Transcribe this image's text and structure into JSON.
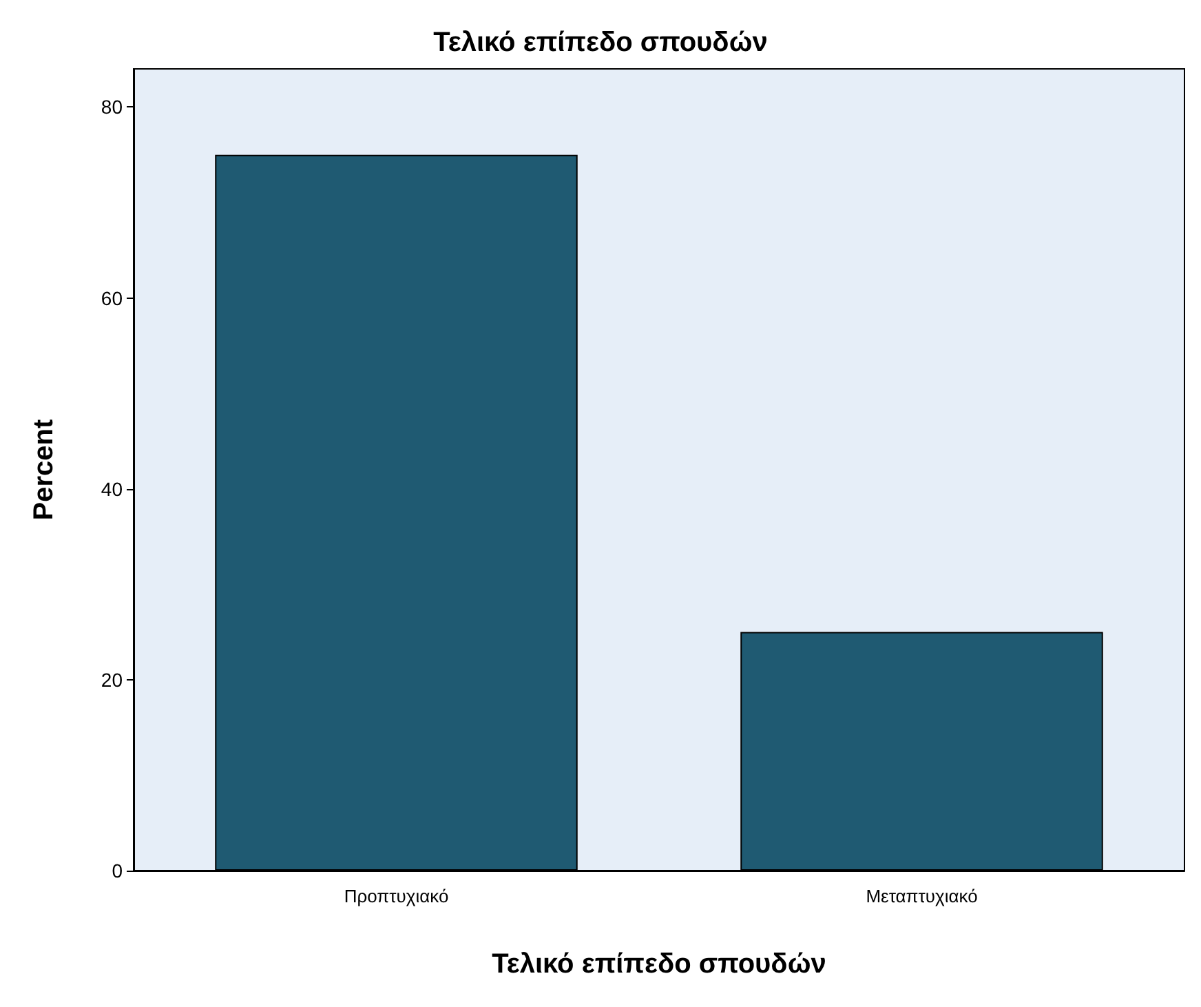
{
  "chart_data": {
    "type": "bar",
    "title": "Τελικό επίπεδο σπουδών",
    "xlabel": "Τελικό επίπεδο σπουδών",
    "ylabel": "Percent",
    "categories": [
      "Προπτυχιακό",
      "Μεταπτυχιακό"
    ],
    "values": [
      75,
      25
    ],
    "color": "#1f5a72",
    "ylim": [
      0,
      84
    ],
    "yticks": [
      0,
      20,
      40,
      60,
      80
    ],
    "grid": false
  }
}
